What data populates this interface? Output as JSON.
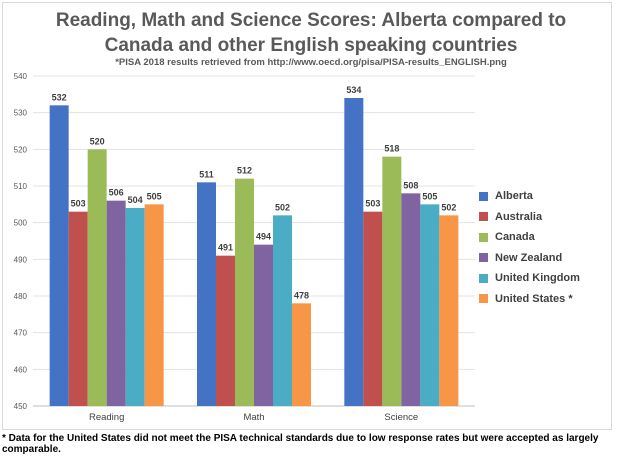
{
  "chart_data": {
    "type": "bar",
    "title_line1": "Reading, Math and Science Scores: Alberta compared to",
    "title_line2": "Canada and other English speaking countries",
    "subtitle": "*PISA 2018 results retrieved from http://www.oecd.org/pisa/PISA-results_ENGLISH.png",
    "categories": [
      "Reading",
      "Math",
      "Science"
    ],
    "series": [
      {
        "name": "Alberta",
        "color": "#4472c4",
        "values": [
          532,
          511,
          534
        ]
      },
      {
        "name": "Australia",
        "color": "#c0504d",
        "values": [
          503,
          491,
          503
        ]
      },
      {
        "name": "Canada",
        "color": "#9bbb59",
        "values": [
          520,
          512,
          518
        ]
      },
      {
        "name": "New Zealand",
        "color": "#8064a2",
        "values": [
          506,
          494,
          508
        ]
      },
      {
        "name": "United Kingdom",
        "color": "#4bacc6",
        "values": [
          504,
          502,
          505
        ]
      },
      {
        "name": "United States *",
        "color": "#f79646",
        "values": [
          505,
          478,
          502
        ]
      }
    ],
    "ylim": [
      450,
      540
    ],
    "yticks": [
      450,
      460,
      470,
      480,
      490,
      500,
      510,
      520,
      530,
      540
    ],
    "grid": true,
    "legend": "right"
  },
  "footnote": "* Data for the United States did not meet the PISA technical standards due to low response rates but were accepted as largely comparable."
}
